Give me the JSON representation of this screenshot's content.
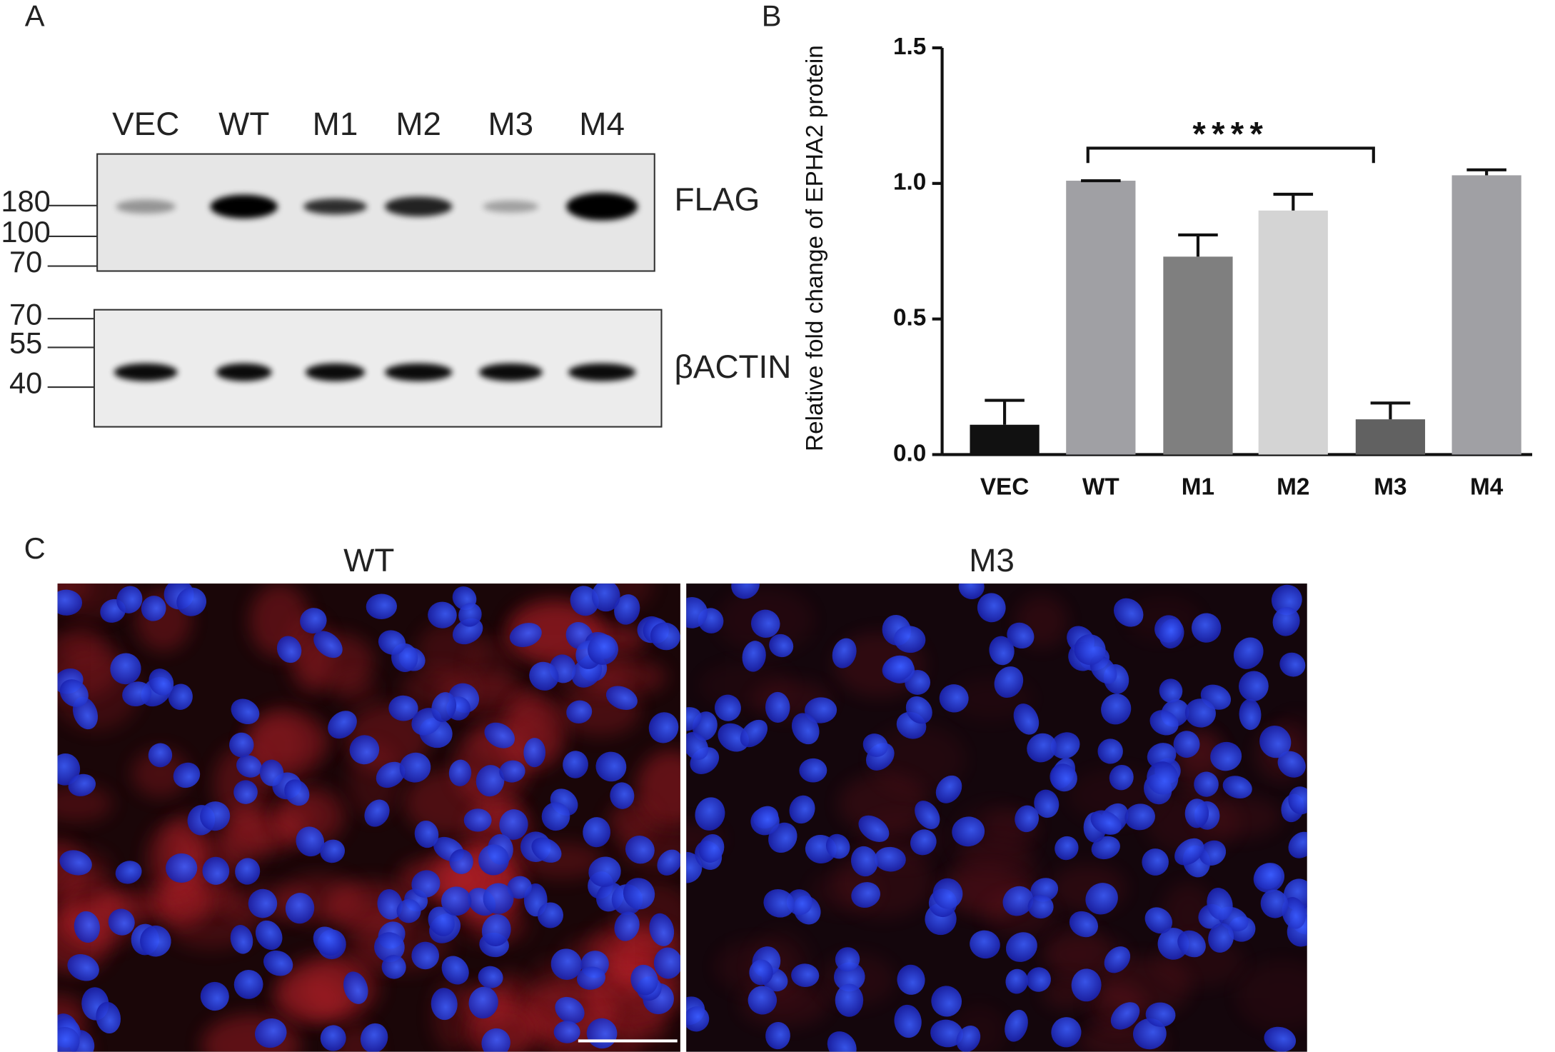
{
  "panel_a": {
    "label": "A",
    "lanes": [
      "VEC",
      "WT",
      "M1",
      "M2",
      "M3",
      "M4"
    ],
    "blots": [
      {
        "name": "FLAG",
        "markers": [
          "180",
          "100",
          "70"
        ]
      },
      {
        "name": "βACTIN",
        "markers": [
          "70",
          "55",
          "40"
        ]
      }
    ]
  },
  "chart_data": {
    "type": "bar",
    "panel_label": "B",
    "ylabel": "Relative fold change of EPHA2 protein",
    "categories": [
      "VEC",
      "WT",
      "M1",
      "M2",
      "M3",
      "M4"
    ],
    "values": [
      0.11,
      1.01,
      0.73,
      0.9,
      0.13,
      1.03
    ],
    "errors": [
      0.09,
      0,
      0.08,
      0.06,
      0.06,
      0.02
    ],
    "colors": [
      "#111111",
      "#a0a0a4",
      "#7f7f7f",
      "#d4d4d4",
      "#616161",
      "#a0a0a4"
    ],
    "ylim": [
      0,
      1.5
    ],
    "yticks": [
      {
        "value": 0,
        "label": "0.0"
      },
      {
        "value": 0.5,
        "label": "0.5"
      },
      {
        "value": 1,
        "label": "1.0"
      },
      {
        "value": 1.5,
        "label": "1.5"
      }
    ],
    "annotation": {
      "label": "****",
      "between": [
        "WT",
        "M3"
      ],
      "y": 1.13
    }
  },
  "panel_c": {
    "label": "C",
    "images": [
      {
        "title": "WT"
      },
      {
        "title": "M3"
      }
    ]
  }
}
